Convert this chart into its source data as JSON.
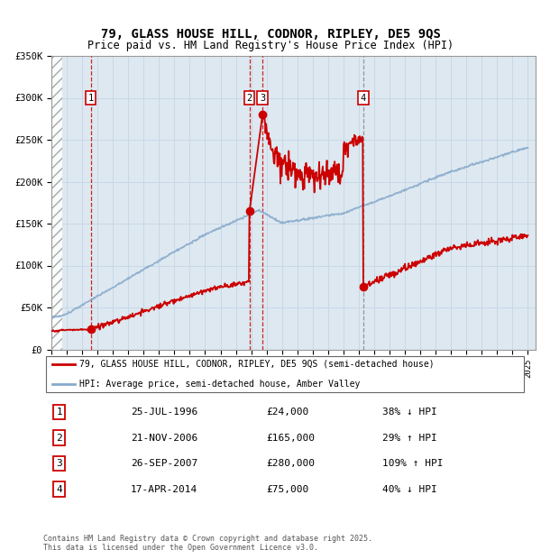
{
  "title": "79, GLASS HOUSE HILL, CODNOR, RIPLEY, DE5 9QS",
  "subtitle": "Price paid vs. HM Land Registry's House Price Index (HPI)",
  "ylim": [
    0,
    350000
  ],
  "yticks": [
    0,
    50000,
    100000,
    150000,
    200000,
    250000,
    300000,
    350000
  ],
  "ytick_labels": [
    "£0",
    "£50K",
    "£100K",
    "£150K",
    "£200K",
    "£250K",
    "£300K",
    "£350K"
  ],
  "transactions": [
    {
      "num": 1,
      "date": "25-JUL-1996",
      "year": 1996.56,
      "price": 24000,
      "pct": "38%",
      "dir": "↓",
      "line_style": "dashed_red"
    },
    {
      "num": 2,
      "date": "21-NOV-2006",
      "year": 2006.89,
      "price": 165000,
      "pct": "29%",
      "dir": "↑",
      "line_style": "dashed_red"
    },
    {
      "num": 3,
      "date": "26-SEP-2007",
      "year": 2007.73,
      "price": 280000,
      "pct": "109%",
      "dir": "↑",
      "line_style": "dashed_red"
    },
    {
      "num": 4,
      "date": "17-APR-2014",
      "year": 2014.29,
      "price": 75000,
      "pct": "40%",
      "dir": "↓",
      "line_style": "dashed_grey"
    }
  ],
  "property_line_color": "#cc0000",
  "hpi_line_color": "#88aacc",
  "grid_color": "#c8d8e8",
  "label_box_color": "#cc0000",
  "bg_color": "#dde8f0",
  "footnote": "Contains HM Land Registry data © Crown copyright and database right 2025.\nThis data is licensed under the Open Government Licence v3.0.",
  "legend_entry1": "79, GLASS HOUSE HILL, CODNOR, RIPLEY, DE5 9QS (semi-detached house)",
  "legend_entry2": "HPI: Average price, semi-detached house, Amber Valley",
  "table_rows": [
    [
      "1",
      "25-JUL-1996",
      "£24,000",
      "38% ↓ HPI"
    ],
    [
      "2",
      "21-NOV-2006",
      "£165,000",
      "29% ↑ HPI"
    ],
    [
      "3",
      "26-SEP-2007",
      "£280,000",
      "109% ↑ HPI"
    ],
    [
      "4",
      "17-APR-2014",
      "£75,000",
      "40% ↓ HPI"
    ]
  ]
}
